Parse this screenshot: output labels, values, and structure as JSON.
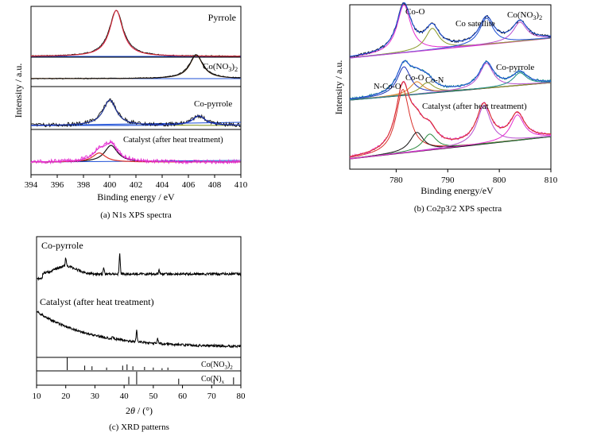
{
  "colors": {
    "axis": "#000000",
    "magenta": "#e32bd0",
    "red": "#d9302a",
    "blue": "#1d4fd6",
    "darkblue": "#1a2fb8",
    "olive": "#8a9a2a",
    "green": "#2b8a3e",
    "teal": "#1a8a86",
    "orange": "#e0832a",
    "black": "#111111",
    "purple": "#b84fd0",
    "bg": "#ffffff"
  },
  "chart_data": [
    {
      "id": "a",
      "type": "line",
      "caption": "(a) N1s XPS spectra",
      "xlabel": "Binding energy / eV",
      "ylabel": "Intensity / a.u.",
      "xlim": [
        394,
        410
      ],
      "xticks": [
        394,
        396,
        398,
        400,
        402,
        404,
        406,
        408,
        410
      ],
      "tick_labels": [
        "394",
        "396",
        "398",
        "400",
        "402",
        "404",
        "406",
        "408",
        "410"
      ],
      "panels": [
        {
          "label": "Pyrrole",
          "peaks": [
            {
              "center": 400.5,
              "height": 1.0,
              "fit": "magenta"
            }
          ]
        },
        {
          "label": "Co(NO",
          "sub": "3",
          "suffix": ")",
          "sub2": "2",
          "peaks": [
            {
              "center": 406.6,
              "height": 1.0,
              "fit": "orange"
            }
          ]
        },
        {
          "label": "Co-pyrrole",
          "peaks": [
            {
              "center": 400.0,
              "height": 0.8,
              "fit": "olive"
            },
            {
              "center": 406.8,
              "height": 0.3,
              "fit": "blue"
            }
          ]
        },
        {
          "label": "Catalyst (after heat treatment)",
          "peaks": [
            {
              "center": 400.1,
              "height": 0.55,
              "fit": "black"
            },
            {
              "center": 399.2,
              "height": 0.3,
              "fit": "red"
            }
          ]
        }
      ]
    },
    {
      "id": "b",
      "type": "line",
      "caption": "(b) Co2p3/2 XPS spectra",
      "xlabel": "Binding energy/eV",
      "ylabel": "Intensity / a.u.",
      "xlim": [
        771,
        810
      ],
      "xticks": [
        780,
        790,
        800,
        810
      ],
      "tick_labels": [
        "780",
        "790",
        "800",
        "810"
      ],
      "annotations": {
        "co_o": "Co-O",
        "co_sat": "Co satellite",
        "co_no3": "Co(NO",
        "co_no3_sub": "3",
        "co_no3_close": ")",
        "co_no3_sub2": "2",
        "n_co_o": "N-Co-O",
        "co_o_2": "Co-O",
        "co_n": "Co-N",
        "co_pyrrole": "Co-pyrrole",
        "catalyst": "Catalyst (after heat treatment)"
      },
      "spectra": [
        {
          "name": "Co(NO3)2",
          "peaks": [
            [
              781.5,
              1.0
            ],
            [
              787,
              0.45
            ],
            [
              797.5,
              0.55
            ],
            [
              804,
              0.4
            ]
          ]
        },
        {
          "name": "Co-pyrrole",
          "peaks": [
            [
              781.5,
              0.8
            ],
            [
              784,
              0.35
            ],
            [
              786,
              0.3
            ],
            [
              797.5,
              0.7
            ],
            [
              804,
              0.35
            ]
          ]
        },
        {
          "name": "Catalyst (after heat treatment)",
          "peaks": [
            [
              781.3,
              1.0
            ],
            [
              784,
              0.3
            ],
            [
              786.5,
              0.25
            ],
            [
              797,
              0.6
            ],
            [
              803.5,
              0.4
            ]
          ]
        }
      ]
    },
    {
      "id": "c",
      "type": "line",
      "caption": "(c) XRD patterns",
      "xlabel_pre": "2",
      "xlabel_theta": "θ",
      "xlabel_post": "/ (°)",
      "xlim": [
        10,
        80
      ],
      "xticks": [
        10,
        20,
        30,
        40,
        50,
        60,
        70,
        80
      ],
      "tick_labels": [
        "10",
        "20",
        "30",
        "40",
        "50",
        "60",
        "70",
        "80"
      ],
      "series": [
        {
          "name": "Co-pyrrole",
          "peaks": [
            [
              20,
              10
            ],
            [
              33,
              8
            ],
            [
              38.5,
              26
            ],
            [
              52,
              6
            ]
          ]
        },
        {
          "name": "Catalyst (after heat treatment)",
          "peaks": [
            [
              44.3,
              14
            ],
            [
              51.5,
              6
            ],
            [
              36,
              3
            ]
          ]
        }
      ],
      "references": [
        {
          "label": "Co(NO",
          "sub": "3",
          "suffix": ")",
          "sub2": "2",
          "lines": [
            [
              20.5,
              1.0
            ],
            [
              26.5,
              0.35
            ],
            [
              29,
              0.3
            ],
            [
              34,
              0.2
            ],
            [
              39.5,
              0.35
            ],
            [
              41,
              0.45
            ],
            [
              43,
              0.3
            ],
            [
              47,
              0.25
            ],
            [
              50,
              0.2
            ],
            [
              53,
              0.15
            ],
            [
              55,
              0.2
            ]
          ]
        },
        {
          "label": "Co(N)",
          "sub": "x",
          "suffix": "",
          "sub2": "",
          "lines": [
            [
              41.6,
              0.6
            ],
            [
              44.3,
              1.0
            ],
            [
              58.7,
              0.45
            ],
            [
              70.8,
              0.4
            ],
            [
              77.5,
              0.55
            ]
          ]
        }
      ]
    }
  ]
}
